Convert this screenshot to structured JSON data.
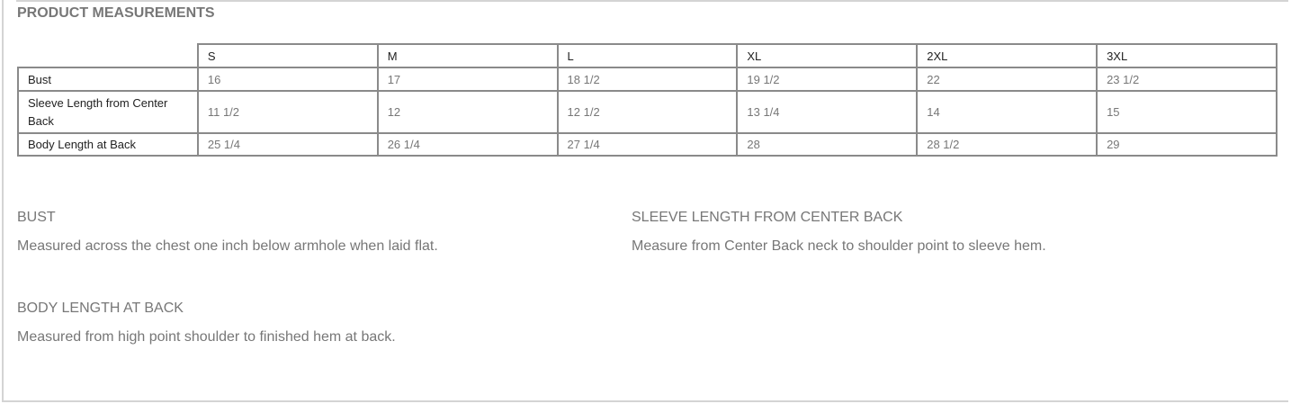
{
  "title": "PRODUCT MEASUREMENTS",
  "sizes": [
    "S",
    "M",
    "L",
    "XL",
    "2XL",
    "3XL"
  ],
  "rows": [
    {
      "label": "Bust",
      "values": [
        "16",
        "17",
        "18 1/2",
        "19 1/2",
        "22",
        "23 1/2"
      ]
    },
    {
      "label": "Sleeve Length from Center Back",
      "values": [
        "11 1/2",
        "12",
        "12 1/2",
        "13 1/4",
        "14",
        "15"
      ]
    },
    {
      "label": "Body Length at Back",
      "values": [
        "25 1/4",
        "26 1/4",
        "27 1/4",
        "28",
        "28 1/2",
        "29"
      ]
    }
  ],
  "descriptions": [
    {
      "heading": "BUST",
      "text": "Measured across the chest one inch below armhole when laid flat."
    },
    {
      "heading": "SLEEVE LENGTH FROM CENTER BACK",
      "text": "Measure from Center Back neck to shoulder point to sleeve hem."
    },
    {
      "heading": "BODY LENGTH AT BACK",
      "text": "Measured from high point shoulder to finished hem at back."
    }
  ]
}
